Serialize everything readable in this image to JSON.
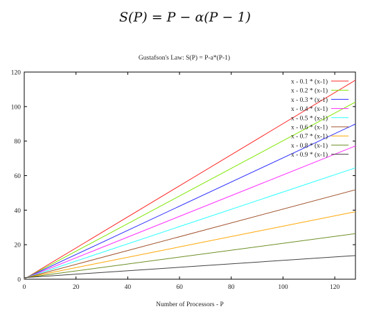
{
  "formula": "S(P) = P − α(P − 1)",
  "chart_data": {
    "type": "line",
    "title": "Gustafson's Law: S(P) = P-a*(P-1)",
    "xlabel": "Number of Processors - P",
    "ylabel": "",
    "xlim": [
      0,
      128
    ],
    "ylim": [
      0,
      120
    ],
    "xticks": [
      0,
      20,
      40,
      60,
      80,
      100,
      120
    ],
    "yticks": [
      0,
      20,
      40,
      60,
      80,
      100,
      120
    ],
    "legend_position": "top-right",
    "grid": false,
    "x": [
      0,
      128
    ],
    "series": [
      {
        "name": "x - 0.1 * (x-1)",
        "color": "#ff2a2a",
        "values": [
          0.1,
          115.3
        ]
      },
      {
        "name": "x - 0.2 * (x-1)",
        "color": "#7fe600",
        "values": [
          0.2,
          102.6
        ]
      },
      {
        "name": "x - 0.3 * (x-1)",
        "color": "#2a2aff",
        "values": [
          0.3,
          89.9
        ]
      },
      {
        "name": "x - 0.4 * (x-1)",
        "color": "#ff2aff",
        "values": [
          0.4,
          77.2
        ]
      },
      {
        "name": "x - 0.5 * (x-1)",
        "color": "#2affff",
        "values": [
          0.5,
          64.5
        ]
      },
      {
        "name": "x - 0.6 * (x-1)",
        "color": "#a0522d",
        "values": [
          0.6,
          51.8
        ]
      },
      {
        "name": "x - 0.7 * (x-1)",
        "color": "#ffa500",
        "values": [
          0.7,
          39.1
        ]
      },
      {
        "name": "x - 0.8 * (x-1)",
        "color": "#6b8e23",
        "values": [
          0.8,
          26.4
        ]
      },
      {
        "name": "x - 0.9 * (x-1)",
        "color": "#404040",
        "values": [
          0.9,
          13.7
        ]
      }
    ]
  }
}
